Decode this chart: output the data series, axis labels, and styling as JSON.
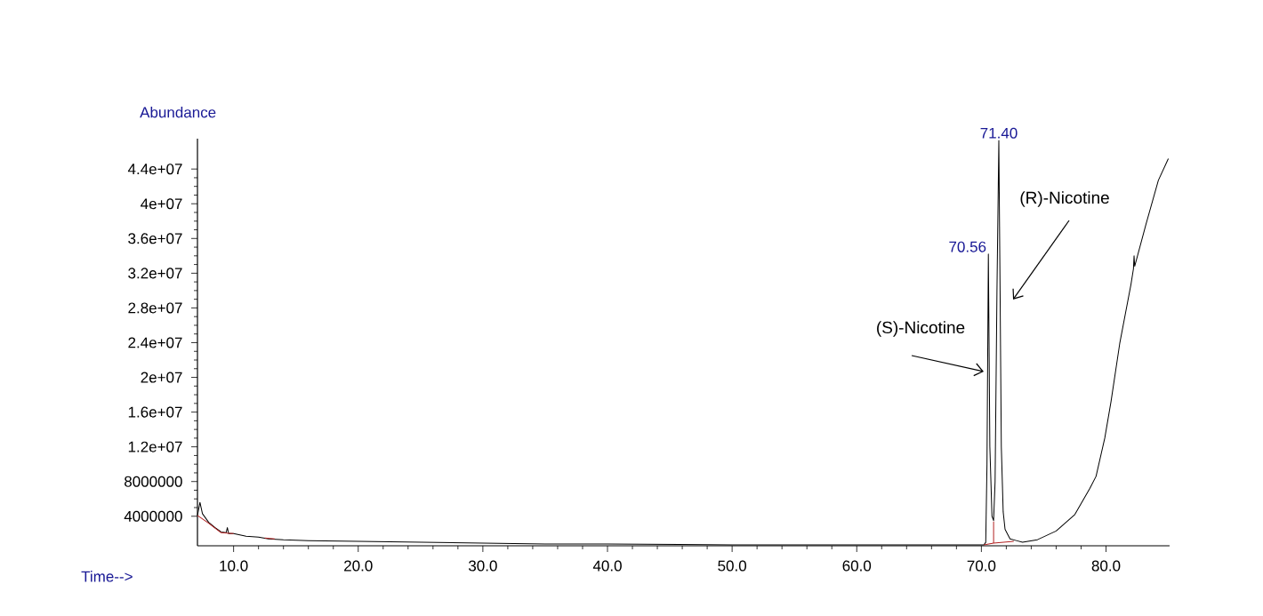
{
  "chart_data": {
    "type": "line",
    "xlabel": "Time-->",
    "ylabel": "Abundance",
    "xlim": [
      7.1,
      85.1
    ],
    "ylim": [
      600000,
      47500000
    ],
    "xticks": [
      {
        "value": 10,
        "label": "10.0"
      },
      {
        "value": 20,
        "label": "20.0"
      },
      {
        "value": 30,
        "label": "30.0"
      },
      {
        "value": 40,
        "label": "40.0"
      },
      {
        "value": 50,
        "label": "50.0"
      },
      {
        "value": 60,
        "label": "60.0"
      },
      {
        "value": 70,
        "label": "70.0"
      },
      {
        "value": 80,
        "label": "80.0"
      }
    ],
    "yticks": [
      {
        "value": 4000000,
        "label": "4000000"
      },
      {
        "value": 8000000,
        "label": "8000000"
      },
      {
        "value": 12000000,
        "label": "1.2e+07"
      },
      {
        "value": 16000000,
        "label": "1.6e+07"
      },
      {
        "value": 20000000,
        "label": "2e+07"
      },
      {
        "value": 24000000,
        "label": "2.4e+07"
      },
      {
        "value": 28000000,
        "label": "2.8e+07"
      },
      {
        "value": 32000000,
        "label": "3.2e+07"
      },
      {
        "value": 36000000,
        "label": "3.6e+07"
      },
      {
        "value": 40000000,
        "label": "4e+07"
      },
      {
        "value": 44000000,
        "label": "4.4e+07"
      }
    ],
    "series": [
      {
        "color": "#000000",
        "x": [
          7.1,
          7.3,
          7.5,
          8.0,
          8.5,
          9.0,
          9.4,
          9.5,
          9.6,
          10,
          11,
          12,
          12.8,
          14,
          16,
          20,
          25,
          30,
          35,
          40,
          50,
          60,
          70.2,
          70.35,
          70.45,
          70.56,
          70.68,
          70.85,
          70.98,
          71.1,
          71.25,
          71.4,
          71.5,
          71.6,
          71.75,
          71.9,
          72.3,
          72.8,
          73.3,
          74.5,
          76,
          77.5,
          78.7,
          79.2,
          79.9,
          80.4,
          81.1,
          82.0,
          82.2,
          82.25,
          82.3,
          83.2,
          84.2,
          85.0
        ],
        "values": [
          4100000,
          5600000,
          4300000,
          3300000,
          2700000,
          2200000,
          2100000,
          2700000,
          2000000,
          2000000,
          1700000,
          1600000,
          1400000,
          1300000,
          1200000,
          1100000,
          1000000,
          900000,
          800000,
          800000,
          700000,
          700000,
          700000,
          1000000,
          10000000,
          34200000,
          12000000,
          4000000,
          3500000,
          8000000,
          30000000,
          47300000,
          30000000,
          12000000,
          4500000,
          2500000,
          1400000,
          1200000,
          1000000,
          1300000,
          2300000,
          4200000,
          7200000,
          8600000,
          13000000,
          17200000,
          23900000,
          30700000,
          32500000,
          34000000,
          32800000,
          37600000,
          42700000,
          45200000
        ]
      },
      {
        "color": "#b22222",
        "x": [
          7.1,
          8,
          9,
          10
        ],
        "values": [
          4100000,
          3200000,
          2100000,
          2000000
        ]
      },
      {
        "color": "#b22222",
        "x": [
          12.5,
          13.3
        ],
        "values": [
          1500000,
          1400000
        ]
      },
      {
        "color": "#b22222",
        "x": [
          70.2,
          70.98,
          72.6
        ],
        "values": [
          700000,
          900000,
          1100000
        ]
      },
      {
        "color": "#b22222",
        "x": [
          70.98,
          70.98
        ],
        "values": [
          900000,
          3400000
        ]
      }
    ],
    "annotations": [
      {
        "text": "71.40",
        "x": 71.4,
        "y": 47300000
      },
      {
        "text": "70.56",
        "x": 70.56,
        "y": 34200000
      },
      "(S)-Nicotine",
      "(R)-Nicotine"
    ]
  }
}
